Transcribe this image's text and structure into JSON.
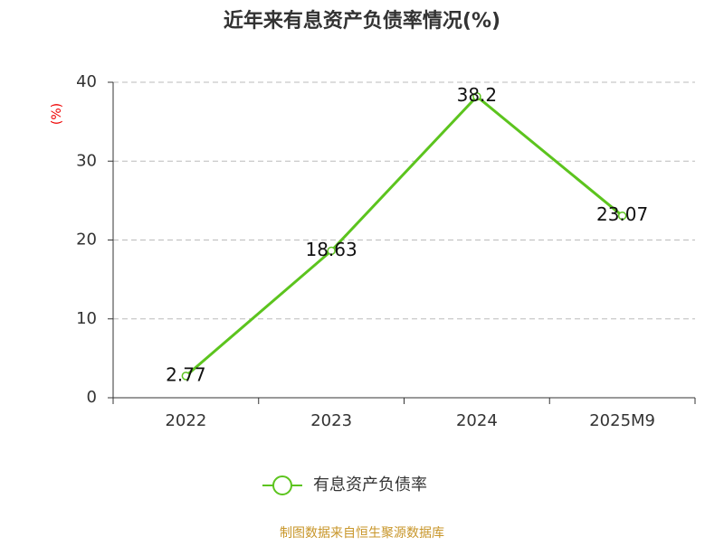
{
  "chart_data": {
    "type": "line",
    "title": "近年来有息资产负债率情况(%)",
    "y_label": "(%)",
    "categories": [
      "2022",
      "2023",
      "2024",
      "2025M9"
    ],
    "series": [
      {
        "name": "有息资产负债率",
        "color": "#5cc41e",
        "values": [
          2.77,
          18.63,
          38.2,
          23.07
        ]
      }
    ],
    "ylim": [
      0,
      40
    ],
    "yticks": [
      0,
      10,
      20,
      30,
      40
    ],
    "grid": true,
    "source": "制图数据来自恒生聚源数据库"
  }
}
